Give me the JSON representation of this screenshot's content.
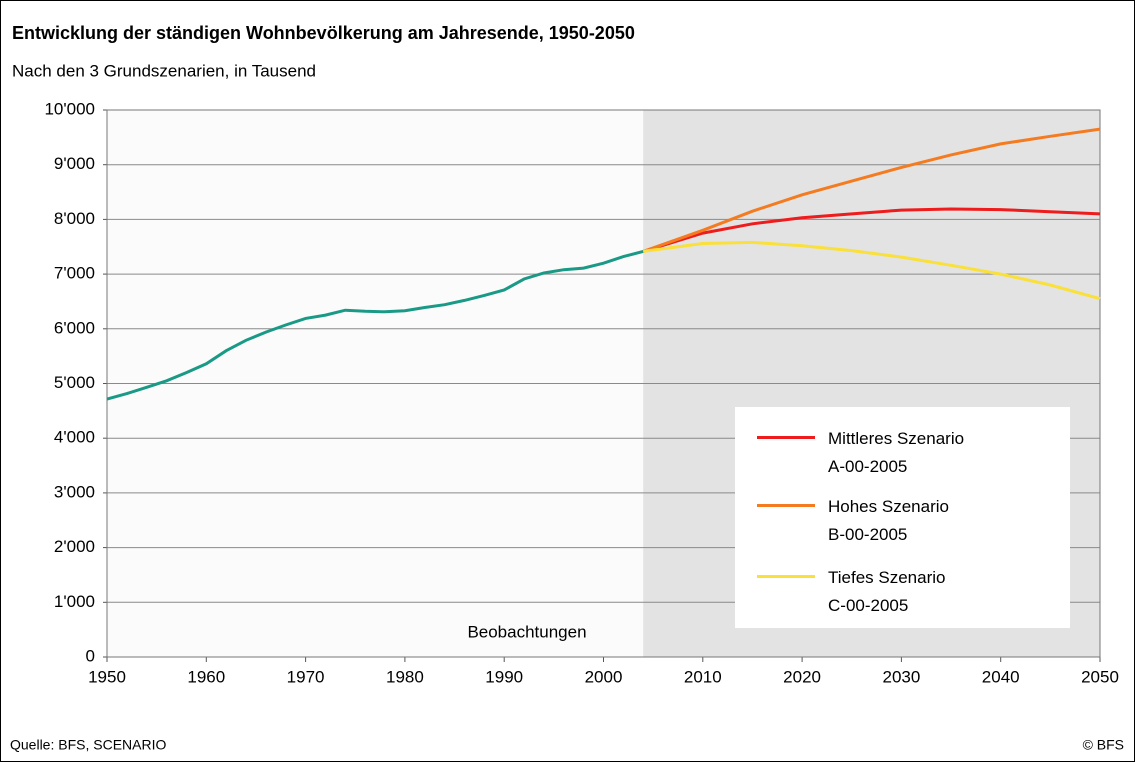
{
  "chart_data": {
    "type": "line",
    "title": "Entwicklung der ständigen Wohnbevölkerung am Jahresende, 1950-2050",
    "subtitle": "Nach den 3 Grundszenarien, in Tausend",
    "source": "Quelle: BFS, SCENARIO",
    "copyright": "© BFS",
    "annotation": "Beobachtungen",
    "xlim": [
      1950,
      2050
    ],
    "xticks": [
      1950,
      1960,
      1970,
      1980,
      1990,
      2000,
      2010,
      2020,
      2030,
      2040,
      2050
    ],
    "ylim": [
      0,
      10000
    ],
    "yticks": [
      0,
      {
        "value": 1000,
        "label": "1'000"
      },
      {
        "value": 2000,
        "label": "2'000"
      },
      {
        "value": 3000,
        "label": "3'000"
      },
      {
        "value": 4000,
        "label": "4'000"
      },
      {
        "value": 5000,
        "label": "5'000"
      },
      {
        "value": 6000,
        "label": "6'000"
      },
      {
        "value": 7000,
        "label": "7'000"
      },
      {
        "value": 8000,
        "label": "8'000"
      },
      {
        "value": 9000,
        "label": "9'000"
      },
      {
        "value": 10000,
        "label": "10'000"
      }
    ],
    "grid": true,
    "series": [
      {
        "color": "#1a9a86",
        "x": [
          1950,
          1952,
          1954,
          1956,
          1958,
          1960,
          1962,
          1964,
          1966,
          1968,
          1970,
          1972,
          1974,
          1976,
          1978,
          1980,
          1982,
          1984,
          1986,
          1988,
          1990,
          1992,
          1994,
          1996,
          1998,
          2000,
          2002,
          2004
        ],
        "values": [
          4715,
          4815,
          4930,
          5050,
          5200,
          5360,
          5600,
          5790,
          5940,
          6070,
          6190,
          6250,
          6340,
          6320,
          6310,
          6330,
          6390,
          6440,
          6520,
          6610,
          6710,
          6910,
          7020,
          7080,
          7110,
          7200,
          7320,
          7415
        ]
      },
      {
        "name": "Mittleres Szenario\nA-00-2005",
        "color": "#ee1c1c",
        "x": [
          2004,
          2010,
          2015,
          2020,
          2025,
          2030,
          2035,
          2040,
          2045,
          2050
        ],
        "values": [
          7415,
          7750,
          7920,
          8030,
          8100,
          8170,
          8190,
          8180,
          8140,
          8100
        ]
      },
      {
        "name": "Hohes Szenario\nB-00-2005",
        "color": "#f47b20",
        "x": [
          2004,
          2010,
          2015,
          2020,
          2025,
          2030,
          2035,
          2040,
          2045,
          2050
        ],
        "values": [
          7415,
          7800,
          8150,
          8450,
          8700,
          8950,
          9180,
          9380,
          9520,
          9650
        ]
      },
      {
        "name": "Tiefes Szenario\nC-00-2005",
        "color": "#f9e03a",
        "x": [
          2004,
          2010,
          2015,
          2020,
          2025,
          2030,
          2035,
          2040,
          2045,
          2050
        ],
        "values": [
          7415,
          7560,
          7580,
          7520,
          7430,
          7310,
          7160,
          7000,
          6800,
          6550
        ]
      }
    ]
  }
}
